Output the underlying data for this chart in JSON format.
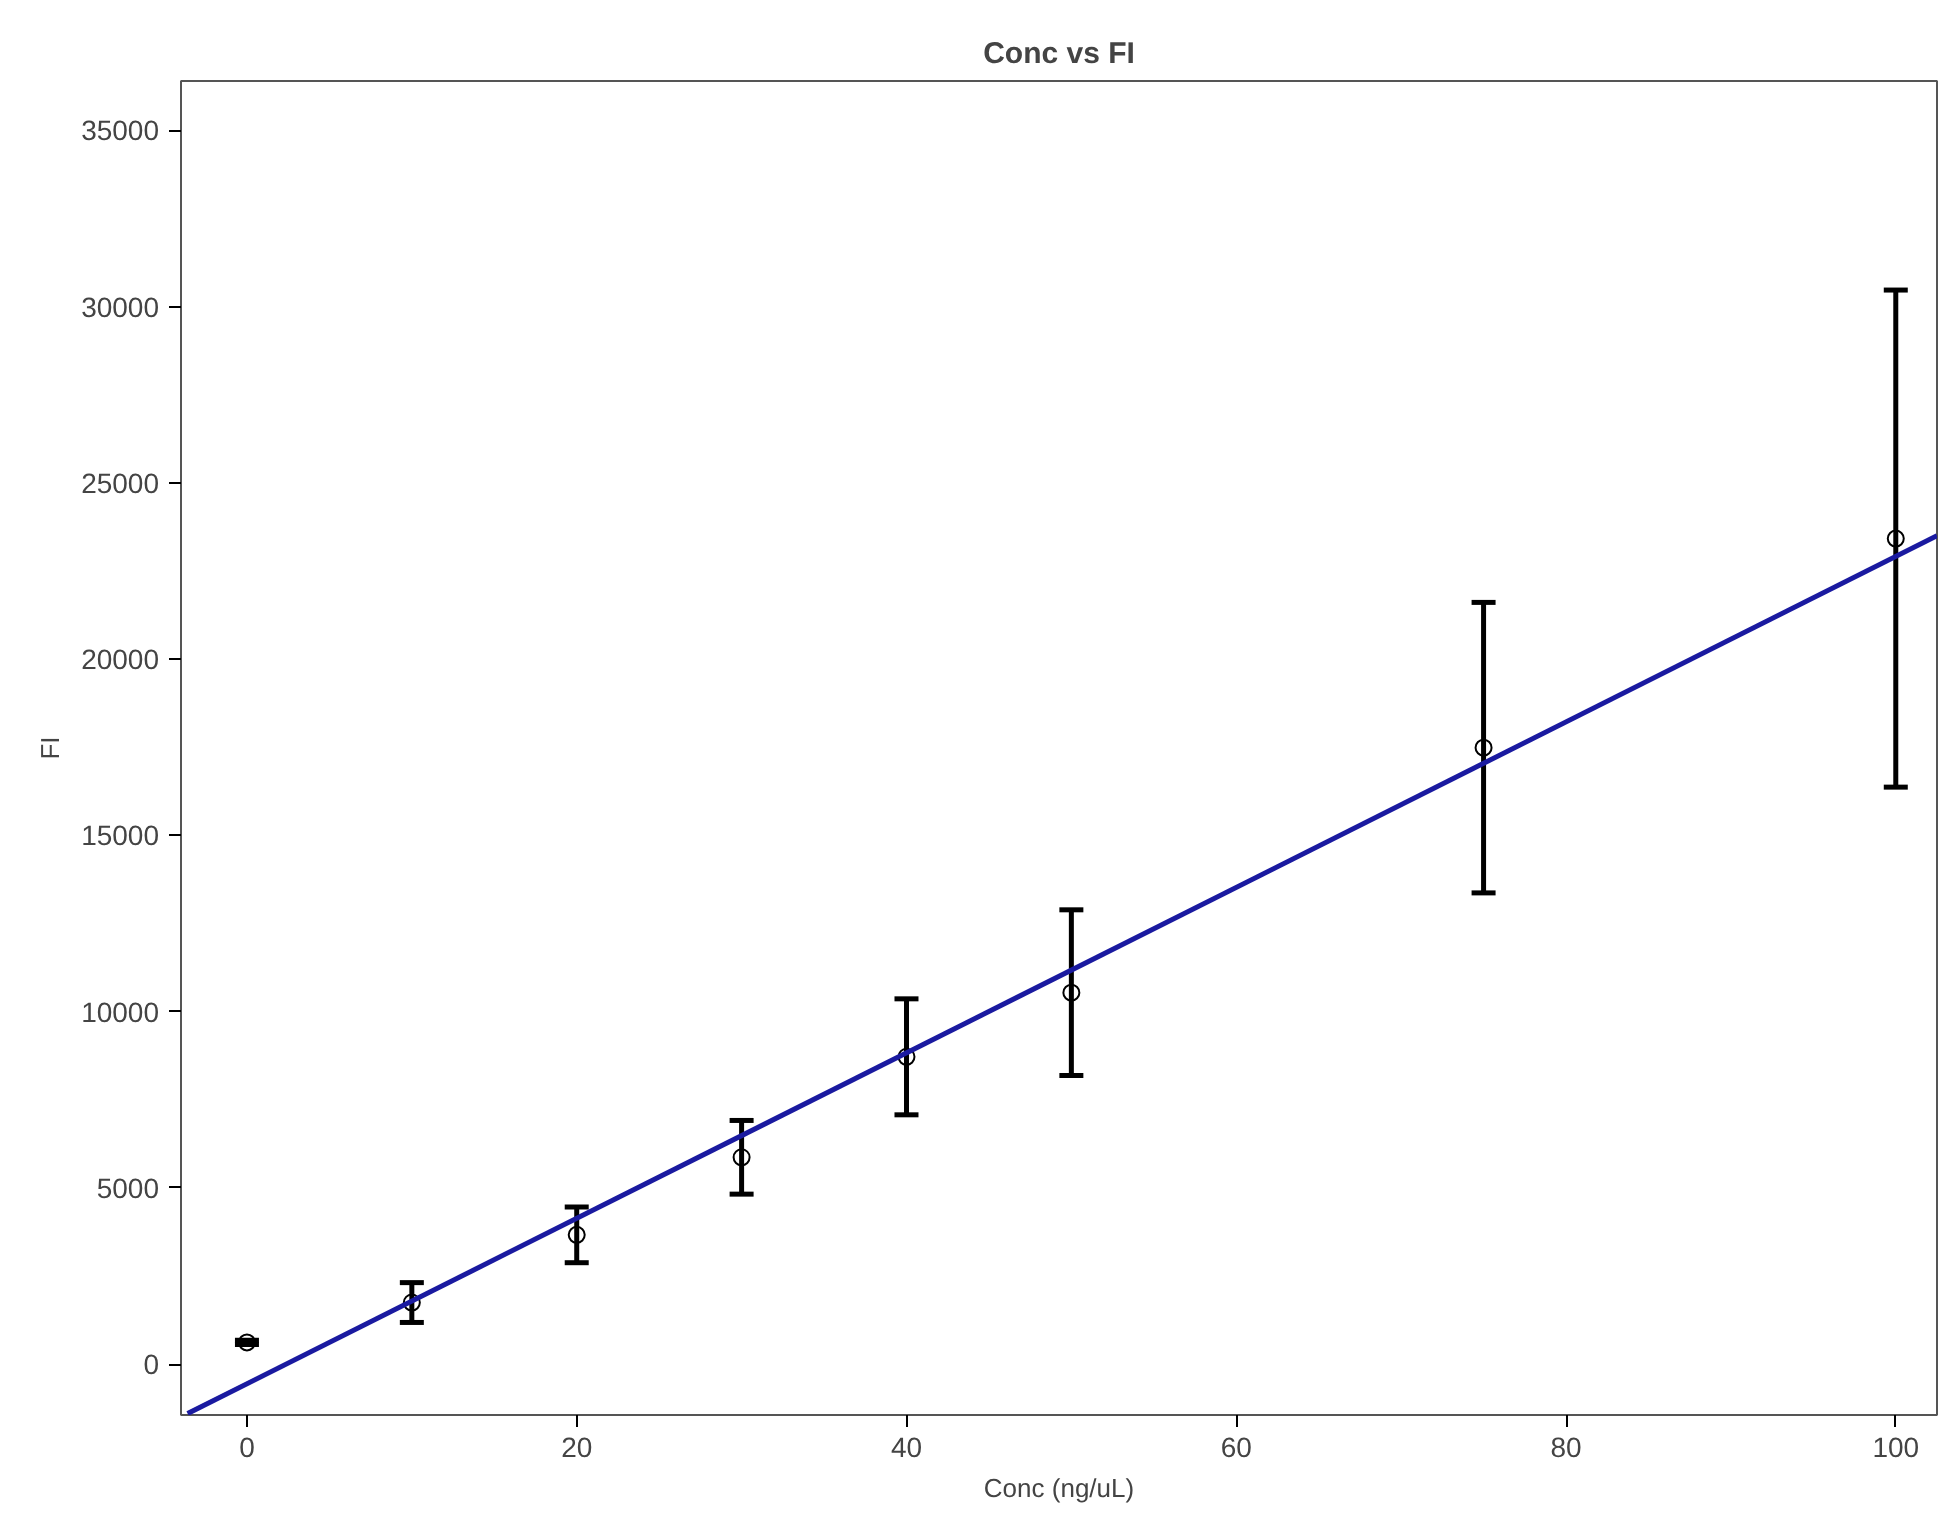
{
  "chart_data": {
    "type": "scatter",
    "title": "Conc vs FI",
    "xlabel": "Conc (ng/uL)",
    "ylabel": "FI",
    "xlim": [
      -4,
      102.5
    ],
    "ylim": [
      -1440,
      36400
    ],
    "xticks": [
      0,
      20,
      40,
      60,
      80,
      100
    ],
    "yticks": [
      0,
      5000,
      10000,
      15000,
      20000,
      25000,
      30000,
      35000
    ],
    "grid": false,
    "series": [
      {
        "marker": "circle",
        "color": "#000000",
        "x": [
          0,
          10,
          20,
          30,
          40,
          50,
          75,
          100
        ],
        "values": [
          620,
          1750,
          3670,
          5870,
          8720,
          10540,
          17490,
          23420
        ],
        "errors": [
          60,
          565,
          790,
          1045,
          1645,
          2350,
          4120,
          7050
        ]
      },
      {
        "type": "line",
        "marker": "none",
        "color": "#1a1aa0",
        "line_style": "solid",
        "x": [
          -3.6,
          102.5
        ],
        "values": [
          -1400,
          23500
        ]
      }
    ]
  }
}
